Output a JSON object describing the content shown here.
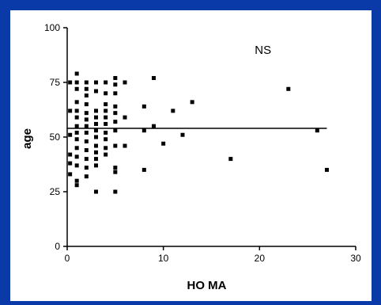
{
  "chart_data": {
    "type": "scatter",
    "title": "",
    "xlabel": "HO MA",
    "ylabel": "age",
    "xlim": [
      0,
      30
    ],
    "ylim": [
      0,
      100
    ],
    "xticks": [
      0,
      10,
      20,
      30
    ],
    "yticks": [
      0,
      25,
      50,
      75,
      100
    ],
    "annotation": "NS",
    "reference_line": {
      "y": 54,
      "x_from": 0,
      "x_to": 27
    },
    "grid": false,
    "legend": "none",
    "marker_color": "#000000",
    "points": [
      [
        0.3,
        75
      ],
      [
        0.3,
        62
      ],
      [
        0.3,
        51
      ],
      [
        0.3,
        42
      ],
      [
        0.3,
        38
      ],
      [
        0.3,
        33
      ],
      [
        1,
        79
      ],
      [
        1,
        75
      ],
      [
        1,
        72
      ],
      [
        1,
        66
      ],
      [
        1,
        62
      ],
      [
        1,
        59
      ],
      [
        1,
        55
      ],
      [
        1,
        52
      ],
      [
        1,
        49
      ],
      [
        1,
        45
      ],
      [
        1,
        41
      ],
      [
        1,
        37
      ],
      [
        1,
        30
      ],
      [
        1,
        28
      ],
      [
        2,
        75
      ],
      [
        2,
        72
      ],
      [
        2,
        69
      ],
      [
        2,
        65
      ],
      [
        2,
        61
      ],
      [
        2,
        58
      ],
      [
        2,
        55
      ],
      [
        2,
        52
      ],
      [
        2,
        48
      ],
      [
        2,
        44
      ],
      [
        2,
        40
      ],
      [
        2,
        36
      ],
      [
        2,
        32
      ],
      [
        3,
        75
      ],
      [
        3,
        71
      ],
      [
        3,
        62
      ],
      [
        3,
        59
      ],
      [
        3,
        56
      ],
      [
        3,
        53
      ],
      [
        3,
        50
      ],
      [
        3,
        46
      ],
      [
        3,
        43
      ],
      [
        3,
        40
      ],
      [
        3,
        37
      ],
      [
        3,
        25
      ],
      [
        4,
        75
      ],
      [
        4,
        70
      ],
      [
        4,
        65
      ],
      [
        4,
        62
      ],
      [
        4,
        59
      ],
      [
        4,
        56
      ],
      [
        4,
        52
      ],
      [
        4,
        49
      ],
      [
        4,
        45
      ],
      [
        4,
        42
      ],
      [
        5,
        77
      ],
      [
        5,
        74
      ],
      [
        5,
        70
      ],
      [
        5,
        64
      ],
      [
        5,
        61
      ],
      [
        5,
        57
      ],
      [
        5,
        53
      ],
      [
        5,
        46
      ],
      [
        5,
        36
      ],
      [
        5,
        34
      ],
      [
        5,
        25
      ],
      [
        6,
        75
      ],
      [
        6,
        59
      ],
      [
        6,
        46
      ],
      [
        8,
        64
      ],
      [
        8,
        53
      ],
      [
        8,
        35
      ],
      [
        9,
        77
      ],
      [
        9,
        55
      ],
      [
        10,
        47
      ],
      [
        11,
        62
      ],
      [
        12,
        51
      ],
      [
        13,
        66
      ],
      [
        17,
        40
      ],
      [
        23,
        72
      ],
      [
        26,
        53
      ],
      [
        27,
        35
      ]
    ]
  }
}
